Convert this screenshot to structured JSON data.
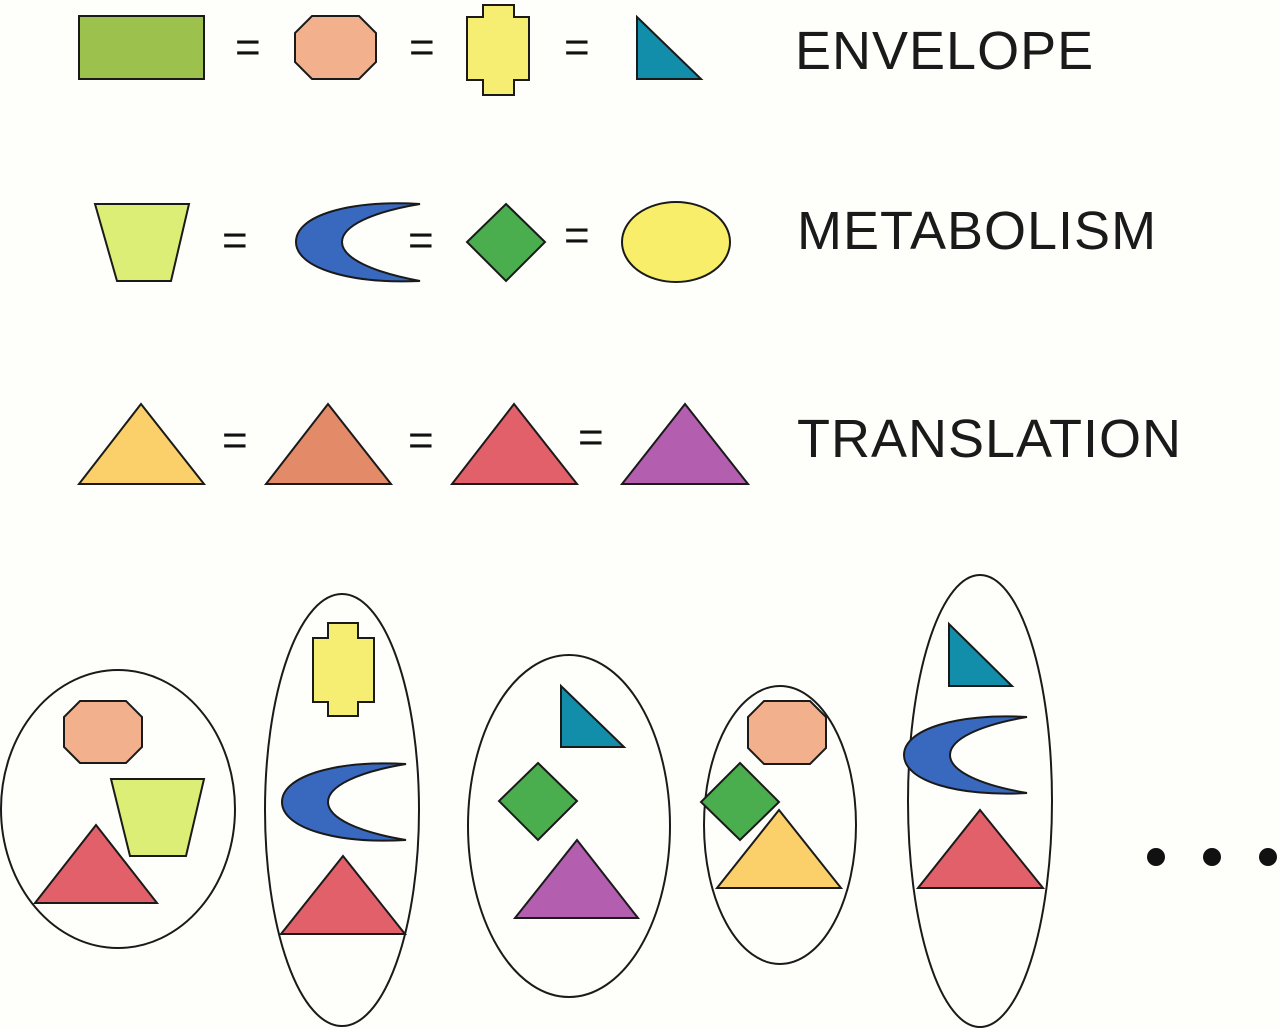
{
  "colors": {
    "green_rect": "#9cc24d",
    "salmon_octagon": "#f2b08c",
    "yellow_cross": "#f6ee72",
    "teal_triangle": "#138eaa",
    "lime_trapezoid": "#ddee76",
    "blue_crescent": "#3968bf",
    "green_diamond": "#4aad4e",
    "yellow_ellipse": "#f8ee6a",
    "gold_triangle": "#fbd06b",
    "coral_triangle": "#e38a68",
    "red_triangle": "#e2606a",
    "purple_triangle": "#b45eb0"
  },
  "legend": {
    "equals_sign": "=",
    "rows": [
      {
        "label": "ENVELOPE",
        "shapes": [
          "green-rectangle",
          "salmon-octagon",
          "yellow-cross",
          "teal-right-triangle"
        ]
      },
      {
        "label": "METABOLISM",
        "shapes": [
          "lime-trapezoid",
          "blue-crescent",
          "green-diamond",
          "yellow-ellipse"
        ]
      },
      {
        "label": "TRANSLATION",
        "shapes": [
          "gold-triangle",
          "coral-triangle",
          "red-triangle",
          "purple-triangle"
        ]
      }
    ]
  },
  "cells": [
    {
      "contents": [
        "salmon-octagon",
        "lime-trapezoid",
        "red-triangle"
      ]
    },
    {
      "contents": [
        "yellow-cross",
        "blue-crescent",
        "red-triangle"
      ]
    },
    {
      "contents": [
        "teal-right-triangle",
        "green-diamond",
        "purple-triangle"
      ]
    },
    {
      "contents": [
        "salmon-octagon",
        "green-diamond",
        "gold-triangle"
      ]
    },
    {
      "contents": [
        "teal-right-triangle",
        "blue-crescent",
        "red-triangle"
      ]
    }
  ],
  "continuation": {
    "dots": 3
  }
}
